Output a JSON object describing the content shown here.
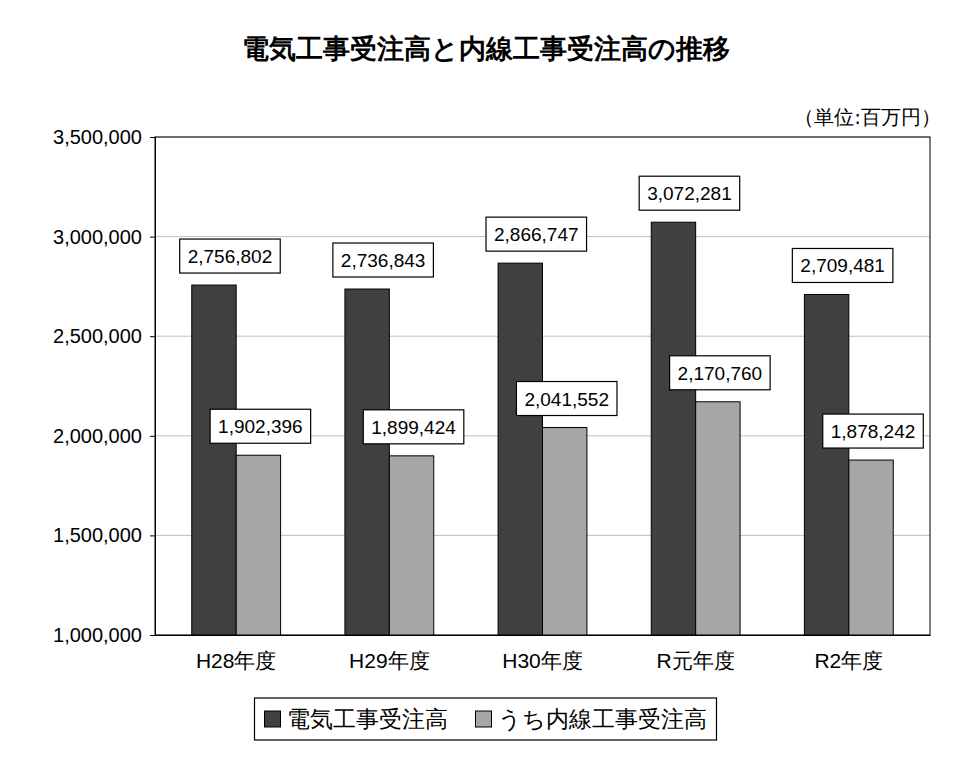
{
  "chart_data": {
    "type": "bar",
    "title": "電気工事受注高と内線工事受注高の推移",
    "annotation": "（単位:百万円）",
    "categories": [
      "H28年度",
      "H29年度",
      "H30年度",
      "R元年度",
      "R2年度"
    ],
    "series": [
      {
        "name": "電気工事受注高",
        "color": "#404040",
        "values": [
          2756802,
          2736843,
          2866747,
          3072281,
          2709481
        ],
        "value_labels": [
          "2,756,802",
          "2,736,843",
          "2,866,747",
          "3,072,281",
          "2,709,481"
        ]
      },
      {
        "name": "うち内線工事受注高",
        "color": "#a6a6a6",
        "values": [
          1902396,
          1899424,
          2041552,
          2170760,
          1878242
        ],
        "value_labels": [
          "1,902,396",
          "1,899,424",
          "2,041,552",
          "2,170,760",
          "1,878,242"
        ]
      }
    ],
    "ylim": [
      1000000,
      3500000
    ],
    "yticks": [
      {
        "value": 1000000,
        "label": "1,000,000"
      },
      {
        "value": 1500000,
        "label": "1,500,000"
      },
      {
        "value": 2000000,
        "label": "2,000,000"
      },
      {
        "value": 2500000,
        "label": "2,500,000"
      },
      {
        "value": 3000000,
        "label": "3,000,000"
      },
      {
        "value": 3500000,
        "label": "3,500,000"
      }
    ],
    "grid": true,
    "data_labels": true,
    "legend": "bottom"
  }
}
